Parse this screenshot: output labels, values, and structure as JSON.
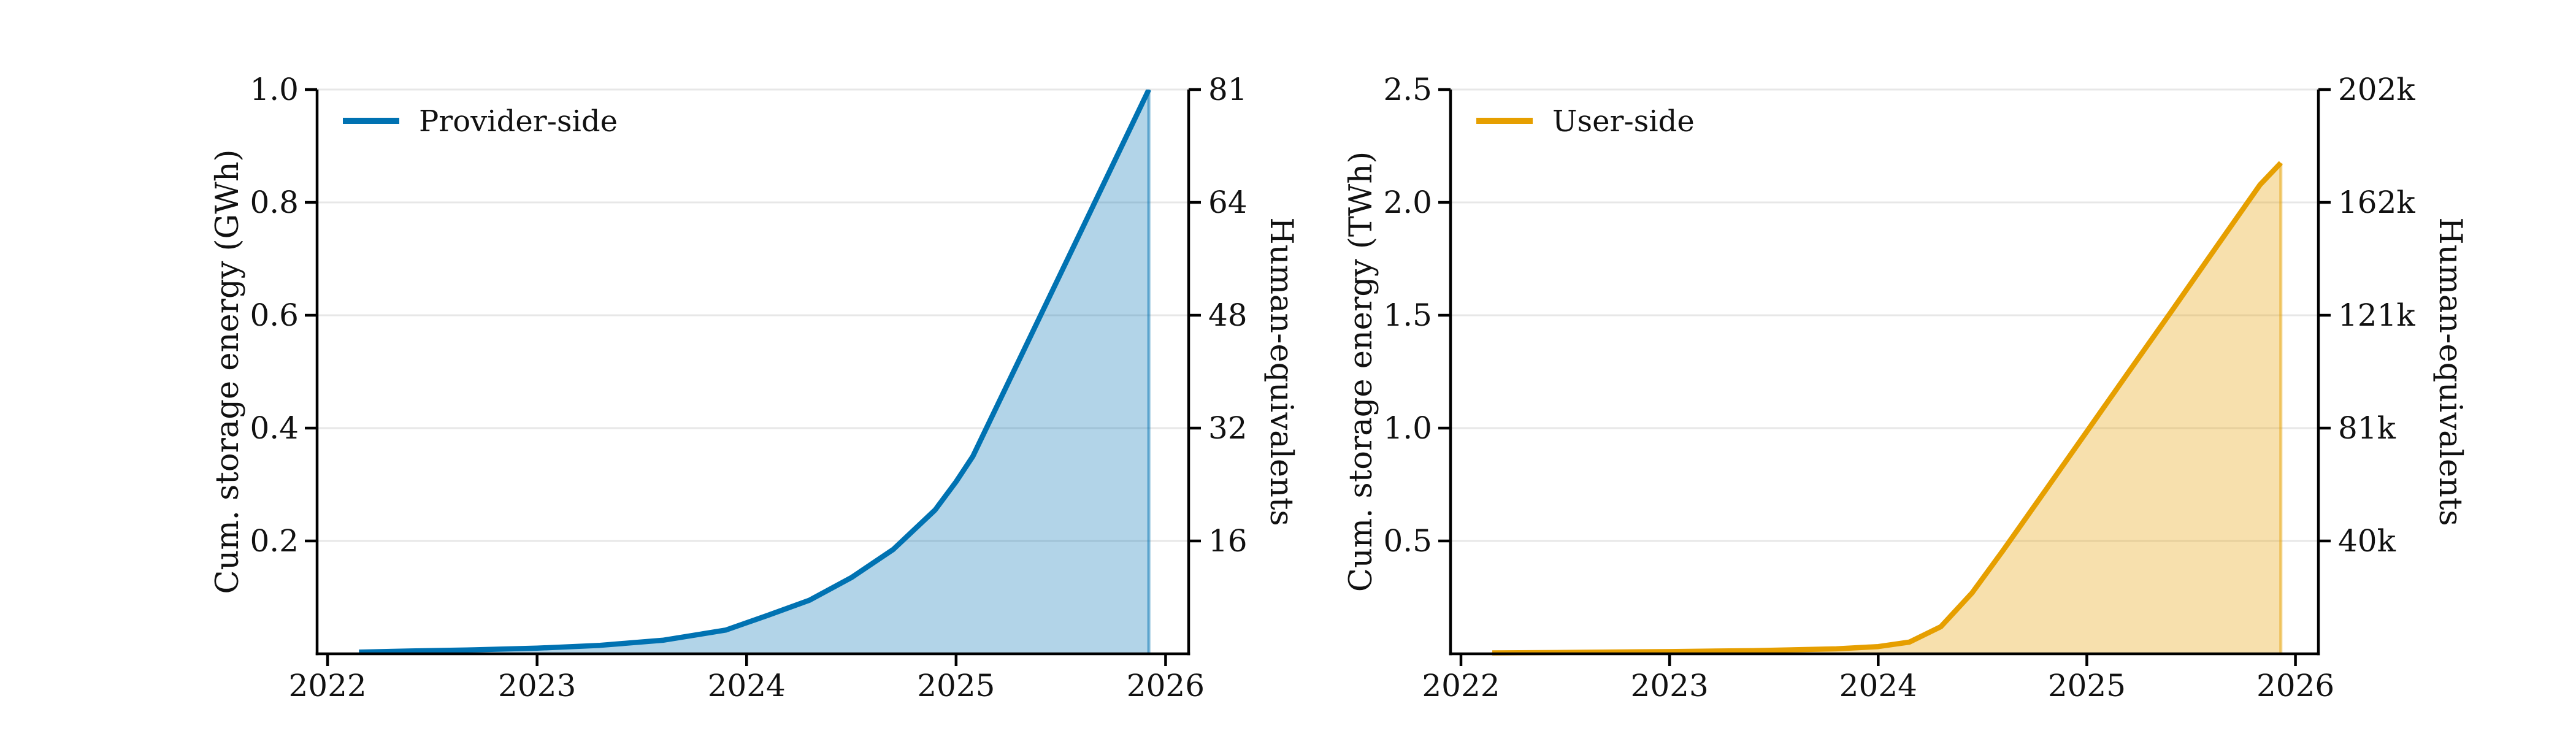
{
  "figure": {
    "background": "#ffffff",
    "text_color": "#111111",
    "grid_color": "#e7e7e7",
    "spine_color": "#000000",
    "panels": [
      "provider-side-panel",
      "user-side-panel"
    ]
  },
  "chart_data": [
    {
      "type": "area",
      "title": "",
      "legend_label": "Provider-side",
      "legend_position": "upper left",
      "line_color": "#0072B2",
      "fill_color": "#0072B2",
      "fill_opacity": 0.3,
      "xlabel": "",
      "ylabel": "Cum. storage energy (GWh)",
      "ylabel_right": "Human-equivalents",
      "xlim": [
        2021.95,
        2026.11
      ],
      "ylim": [
        0,
        1.0
      ],
      "x_ticks": [
        2022,
        2023,
        2024,
        2025,
        2026
      ],
      "x_tick_labels": [
        "2022",
        "2023",
        "2024",
        "2025",
        "2026"
      ],
      "y_ticks": [
        0.2,
        0.4,
        0.6,
        0.8,
        1.0
      ],
      "y_tick_labels": [
        "0.2",
        "0.4",
        "0.6",
        "0.8",
        "1.0"
      ],
      "y_right_tick_labels": [
        "16",
        "32",
        "48",
        "64",
        "81"
      ],
      "grid": "horizontal",
      "legend_frame": false,
      "series": [
        {
          "name": "Provider-side",
          "x": [
            2022.15,
            2022.4,
            2022.7,
            2023.0,
            2023.3,
            2023.6,
            2023.9,
            2024.0,
            2024.1,
            2024.3,
            2024.5,
            2024.7,
            2024.9,
            2025.0,
            2025.08,
            2025.3,
            2025.6,
            2025.92
          ],
          "y": [
            0.003,
            0.005,
            0.007,
            0.01,
            0.015,
            0.024,
            0.042,
            0.055,
            0.068,
            0.095,
            0.135,
            0.185,
            0.255,
            0.305,
            0.35,
            0.52,
            0.752,
            1.0
          ]
        }
      ]
    },
    {
      "type": "area",
      "title": "",
      "legend_label": "User-side",
      "legend_position": "upper left",
      "line_color": "#E69F00",
      "fill_color": "#E69F00",
      "fill_opacity": 0.32,
      "xlabel": "",
      "ylabel": "Cum. storage energy (TWh)",
      "ylabel_right": "Human-equivalents",
      "xlim": [
        2021.95,
        2026.11
      ],
      "ylim": [
        0,
        2.5
      ],
      "x_ticks": [
        2022,
        2023,
        2024,
        2025,
        2026
      ],
      "x_tick_labels": [
        "2022",
        "2023",
        "2024",
        "2025",
        "2026"
      ],
      "y_ticks": [
        0.5,
        1.0,
        1.5,
        2.0,
        2.5
      ],
      "y_tick_labels": [
        "0.5",
        "1.0",
        "1.5",
        "2.0",
        "2.5"
      ],
      "y_right_tick_labels": [
        "40k",
        "81k",
        "121k",
        "162k",
        "202k"
      ],
      "grid": "horizontal",
      "legend_frame": false,
      "series": [
        {
          "name": "User-side",
          "x": [
            2022.15,
            2022.5,
            2023.0,
            2023.4,
            2023.8,
            2024.0,
            2024.15,
            2024.3,
            2024.45,
            2024.6,
            2024.8,
            2025.0,
            2025.2,
            2025.4,
            2025.6,
            2025.83,
            2025.93
          ],
          "y": [
            0.004,
            0.006,
            0.01,
            0.014,
            0.022,
            0.032,
            0.052,
            0.12,
            0.27,
            0.46,
            0.722,
            0.985,
            1.248,
            1.51,
            1.775,
            2.078,
            2.175
          ]
        }
      ]
    }
  ]
}
